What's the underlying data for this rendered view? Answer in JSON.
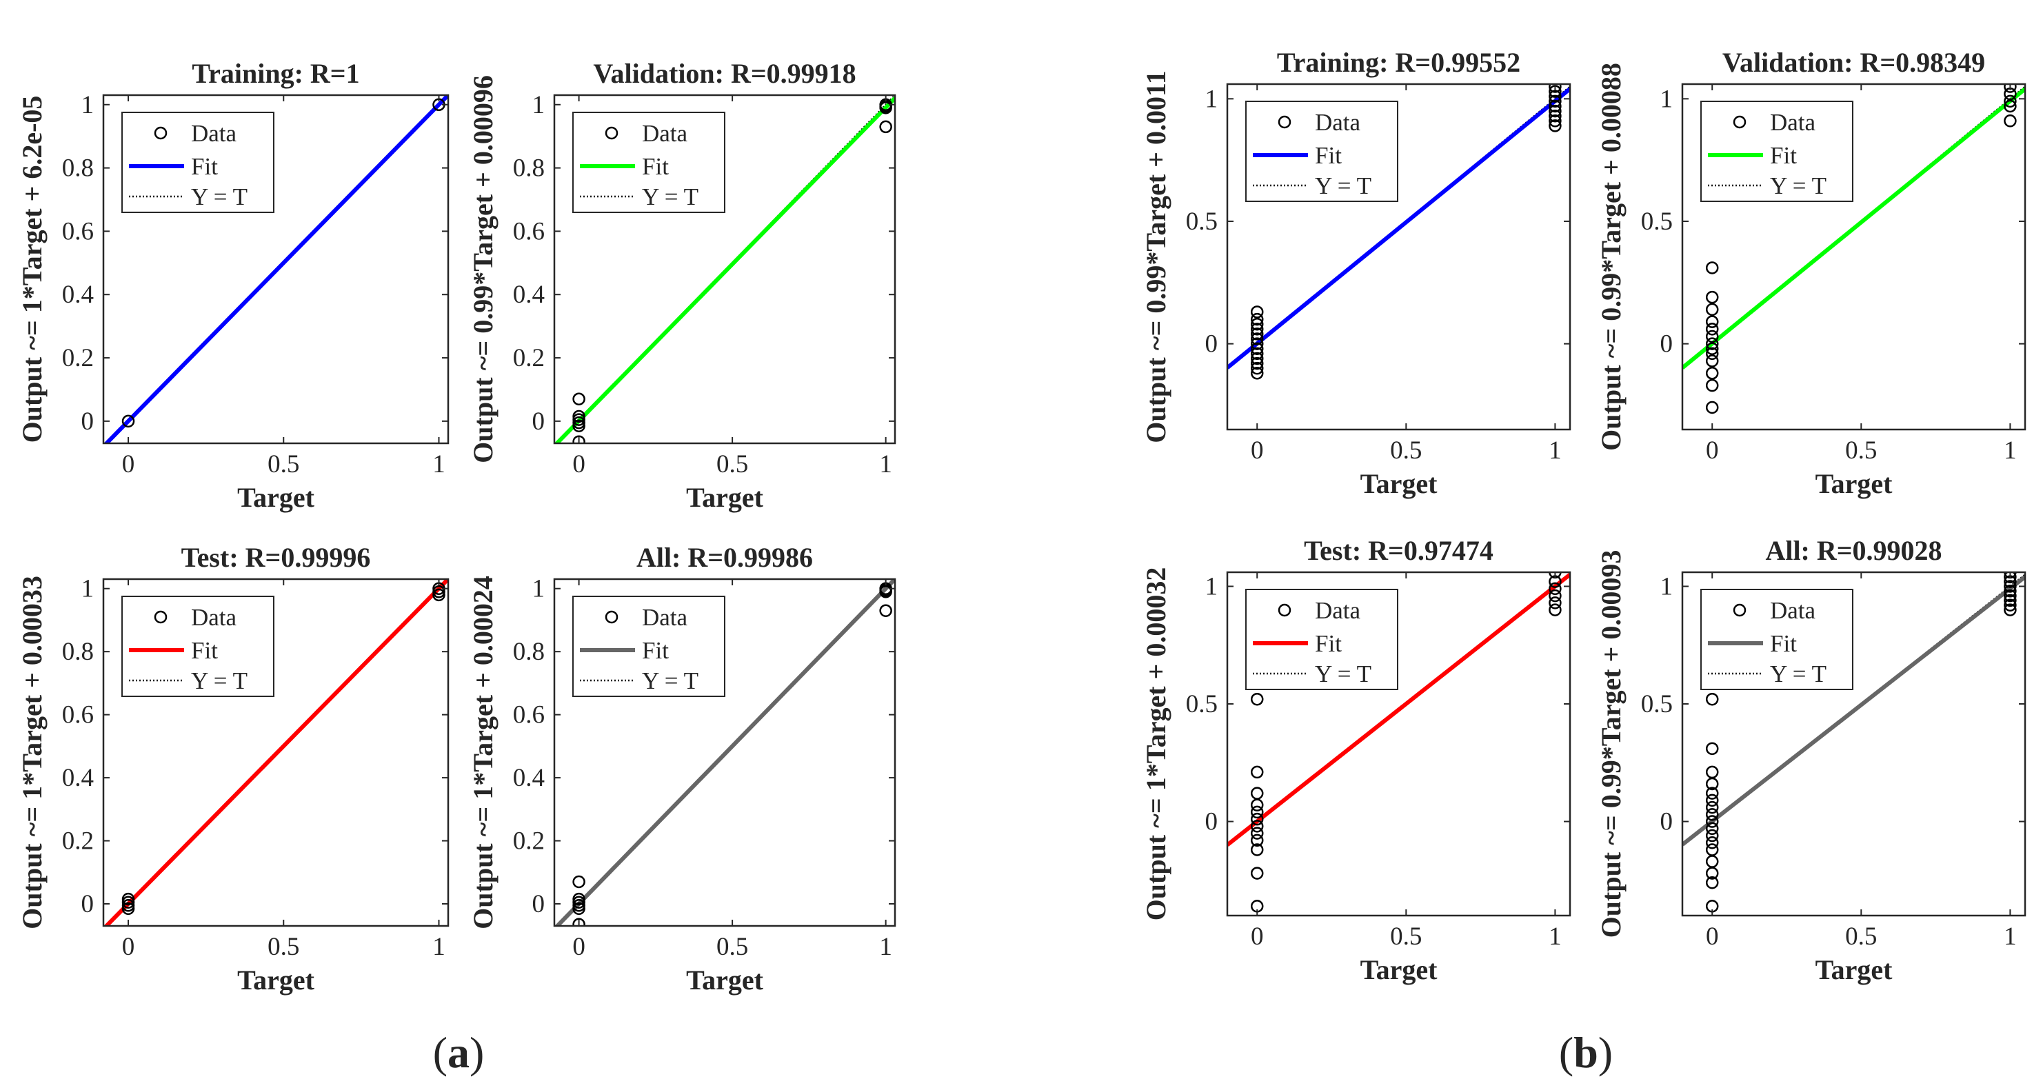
{
  "figure": {
    "panel_labels": [
      {
        "open": "(",
        "letter": "a",
        "close": ")"
      },
      {
        "open": "(",
        "letter": "b",
        "close": ")"
      }
    ]
  },
  "legend_labels": {
    "data": "Data",
    "fit": "Fit",
    "yt": "Y = T"
  },
  "colors": {
    "training": "#0000ff",
    "validation": "#00ff00",
    "test": "#ff0000",
    "all": "#666666"
  },
  "chart_data": [
    {
      "type": "scatter",
      "panel": "a",
      "title": "Training: R=1",
      "xlabel": "Target",
      "ylabel": "Output ~= 1*Target + 6.2e-05",
      "xlim": [
        -0.08,
        1.03
      ],
      "ylim": [
        -0.07,
        1.03
      ],
      "xticks": [
        0,
        0.5,
        1
      ],
      "xtick_labels": [
        "0",
        "0.5",
        "1"
      ],
      "yticks": [
        0,
        0.2,
        0.4,
        0.6,
        0.8,
        1
      ],
      "ytick_labels": [
        "0",
        "0.2",
        "0.4",
        "0.6",
        "0.8",
        "1"
      ],
      "fit": {
        "slope": 1,
        "intercept": 6.2e-05,
        "color": "#0000ff"
      },
      "points": [
        [
          0,
          0
        ],
        [
          1,
          1
        ]
      ],
      "legend_position": "top-left"
    },
    {
      "type": "scatter",
      "panel": "a",
      "title": "Validation: R=0.99918",
      "xlabel": "Target",
      "ylabel": "Output ~= 0.99*Target + 0.00096",
      "xlim": [
        -0.08,
        1.03
      ],
      "ylim": [
        -0.07,
        1.03
      ],
      "xticks": [
        0,
        0.5,
        1
      ],
      "xtick_labels": [
        "0",
        "0.5",
        "1"
      ],
      "yticks": [
        0,
        0.2,
        0.4,
        0.6,
        0.8,
        1
      ],
      "ytick_labels": [
        "0",
        "0.2",
        "0.4",
        "0.6",
        "0.8",
        "1"
      ],
      "fit": {
        "slope": 0.99,
        "intercept": 0.00096,
        "color": "#00ff00"
      },
      "points": [
        [
          0,
          0.07
        ],
        [
          0,
          0.015
        ],
        [
          0,
          0.005
        ],
        [
          0,
          -0.005
        ],
        [
          0,
          -0.015
        ],
        [
          0,
          -0.065
        ],
        [
          1,
          1.0
        ],
        [
          1,
          0.995
        ],
        [
          1,
          0.99
        ],
        [
          1,
          0.93
        ]
      ],
      "legend_position": "top-left"
    },
    {
      "type": "scatter",
      "panel": "a",
      "title": "Test: R=0.99996",
      "xlabel": "Target",
      "ylabel": "Output ~= 1*Target + 0.00033",
      "xlim": [
        -0.08,
        1.03
      ],
      "ylim": [
        -0.07,
        1.03
      ],
      "xticks": [
        0,
        0.5,
        1
      ],
      "xtick_labels": [
        "0",
        "0.5",
        "1"
      ],
      "yticks": [
        0,
        0.2,
        0.4,
        0.6,
        0.8,
        1
      ],
      "ytick_labels": [
        "0",
        "0.2",
        "0.4",
        "0.6",
        "0.8",
        "1"
      ],
      "fit": {
        "slope": 1,
        "intercept": 0.00033,
        "color": "#ff0000"
      },
      "points": [
        [
          0,
          0.015
        ],
        [
          0,
          0.005
        ],
        [
          0,
          -0.005
        ],
        [
          0,
          -0.015
        ],
        [
          1,
          1.0
        ],
        [
          1,
          0.99
        ],
        [
          1,
          0.98
        ]
      ],
      "legend_position": "top-left"
    },
    {
      "type": "scatter",
      "panel": "a",
      "title": "All: R=0.99986",
      "xlabel": "Target",
      "ylabel": "Output ~= 1*Target + 0.00024",
      "xlim": [
        -0.08,
        1.03
      ],
      "ylim": [
        -0.07,
        1.03
      ],
      "xticks": [
        0,
        0.5,
        1
      ],
      "xtick_labels": [
        "0",
        "0.5",
        "1"
      ],
      "yticks": [
        0,
        0.2,
        0.4,
        0.6,
        0.8,
        1
      ],
      "ytick_labels": [
        "0",
        "0.2",
        "0.4",
        "0.6",
        "0.8",
        "1"
      ],
      "fit": {
        "slope": 1,
        "intercept": 0.00024,
        "color": "#666666"
      },
      "points": [
        [
          0,
          0.07
        ],
        [
          0,
          0.015
        ],
        [
          0,
          0.005
        ],
        [
          0,
          -0.005
        ],
        [
          0,
          -0.015
        ],
        [
          0,
          -0.065
        ],
        [
          1,
          1.0
        ],
        [
          1,
          0.995
        ],
        [
          1,
          0.99
        ],
        [
          1,
          0.93
        ]
      ],
      "legend_position": "top-left"
    },
    {
      "type": "scatter",
      "panel": "b",
      "title": "Training: R=0.99552",
      "xlabel": "Target",
      "ylabel": "Output ~= 0.99*Target + 0.0011",
      "xlim": [
        -0.1,
        1.05
      ],
      "ylim": [
        -0.35,
        1.06
      ],
      "xticks": [
        0,
        0.5,
        1
      ],
      "xtick_labels": [
        "0",
        "0.5",
        "1"
      ],
      "yticks": [
        0,
        0.5,
        1
      ],
      "ytick_labels": [
        "0",
        "0.5",
        "1"
      ],
      "fit": {
        "slope": 0.99,
        "intercept": 0.0011,
        "color": "#0000ff"
      },
      "points": [
        [
          0,
          0.13
        ],
        [
          0,
          0.1
        ],
        [
          0,
          0.08
        ],
        [
          0,
          0.06
        ],
        [
          0,
          0.04
        ],
        [
          0,
          0.02
        ],
        [
          0,
          0.0
        ],
        [
          0,
          -0.02
        ],
        [
          0,
          -0.04
        ],
        [
          0,
          -0.06
        ],
        [
          0,
          -0.08
        ],
        [
          0,
          -0.1
        ],
        [
          0,
          -0.12
        ],
        [
          1,
          1.05
        ],
        [
          1,
          1.03
        ],
        [
          1,
          1.01
        ],
        [
          1,
          0.99
        ],
        [
          1,
          0.97
        ],
        [
          1,
          0.95
        ],
        [
          1,
          0.93
        ],
        [
          1,
          0.91
        ],
        [
          1,
          0.89
        ]
      ],
      "legend_position": "top-left"
    },
    {
      "type": "scatter",
      "panel": "b",
      "title": "Validation: R=0.98349",
      "xlabel": "Target",
      "ylabel": "Output ~= 0.99*Target + 0.00088",
      "xlim": [
        -0.1,
        1.05
      ],
      "ylim": [
        -0.35,
        1.06
      ],
      "xticks": [
        0,
        0.5,
        1
      ],
      "xtick_labels": [
        "0",
        "0.5",
        "1"
      ],
      "yticks": [
        0,
        0.5,
        1
      ],
      "ytick_labels": [
        "0",
        "0.5",
        "1"
      ],
      "fit": {
        "slope": 0.99,
        "intercept": 0.00088,
        "color": "#00ff00"
      },
      "points": [
        [
          0,
          0.31
        ],
        [
          0,
          0.19
        ],
        [
          0,
          0.14
        ],
        [
          0,
          0.09
        ],
        [
          0,
          0.06
        ],
        [
          0,
          0.03
        ],
        [
          0,
          0.0
        ],
        [
          0,
          -0.02
        ],
        [
          0,
          -0.04
        ],
        [
          0,
          -0.07
        ],
        [
          0,
          -0.12
        ],
        [
          0,
          -0.17
        ],
        [
          0,
          -0.26
        ],
        [
          1,
          1.05
        ],
        [
          1,
          1.02
        ],
        [
          1,
          0.99
        ],
        [
          1,
          0.97
        ],
        [
          1,
          0.91
        ]
      ],
      "legend_position": "top-left"
    },
    {
      "type": "scatter",
      "panel": "b",
      "title": "Test: R=0.97474",
      "xlabel": "Target",
      "ylabel": "Output ~= 1*Target + 0.00032",
      "xlim": [
        -0.1,
        1.05
      ],
      "ylim": [
        -0.4,
        1.06
      ],
      "xticks": [
        0,
        0.5,
        1
      ],
      "xtick_labels": [
        "0",
        "0.5",
        "1"
      ],
      "yticks": [
        0,
        0.5,
        1
      ],
      "ytick_labels": [
        "0",
        "0.5",
        "1"
      ],
      "fit": {
        "slope": 1,
        "intercept": 0.00032,
        "color": "#ff0000"
      },
      "points": [
        [
          0,
          0.52
        ],
        [
          0,
          0.21
        ],
        [
          0,
          0.12
        ],
        [
          0,
          0.07
        ],
        [
          0,
          0.04
        ],
        [
          0,
          0.01
        ],
        [
          0,
          -0.02
        ],
        [
          0,
          -0.05
        ],
        [
          0,
          -0.08
        ],
        [
          0,
          -0.12
        ],
        [
          0,
          -0.22
        ],
        [
          0,
          -0.36
        ],
        [
          1,
          1.06
        ],
        [
          1,
          1.02
        ],
        [
          1,
          0.99
        ],
        [
          1,
          0.96
        ],
        [
          1,
          0.93
        ],
        [
          1,
          0.9
        ]
      ],
      "legend_position": "top-left"
    },
    {
      "type": "scatter",
      "panel": "b",
      "title": "All: R=0.99028",
      "xlabel": "Target",
      "ylabel": "Output ~= 0.99*Target + 0.00093",
      "xlim": [
        -0.1,
        1.05
      ],
      "ylim": [
        -0.4,
        1.06
      ],
      "xticks": [
        0,
        0.5,
        1
      ],
      "xtick_labels": [
        "0",
        "0.5",
        "1"
      ],
      "yticks": [
        0,
        0.5,
        1
      ],
      "ytick_labels": [
        "0",
        "0.5",
        "1"
      ],
      "fit": {
        "slope": 0.99,
        "intercept": 0.00093,
        "color": "#666666"
      },
      "points": [
        [
          0,
          0.52
        ],
        [
          0,
          0.31
        ],
        [
          0,
          0.21
        ],
        [
          0,
          0.16
        ],
        [
          0,
          0.12
        ],
        [
          0,
          0.09
        ],
        [
          0,
          0.06
        ],
        [
          0,
          0.03
        ],
        [
          0,
          0.0
        ],
        [
          0,
          -0.03
        ],
        [
          0,
          -0.06
        ],
        [
          0,
          -0.09
        ],
        [
          0,
          -0.12
        ],
        [
          0,
          -0.17
        ],
        [
          0,
          -0.22
        ],
        [
          0,
          -0.26
        ],
        [
          0,
          -0.36
        ],
        [
          1,
          1.06
        ],
        [
          1,
          1.04
        ],
        [
          1,
          1.02
        ],
        [
          1,
          1.0
        ],
        [
          1,
          0.98
        ],
        [
          1,
          0.96
        ],
        [
          1,
          0.94
        ],
        [
          1,
          0.92
        ],
        [
          1,
          0.9
        ]
      ],
      "legend_position": "top-left"
    }
  ]
}
